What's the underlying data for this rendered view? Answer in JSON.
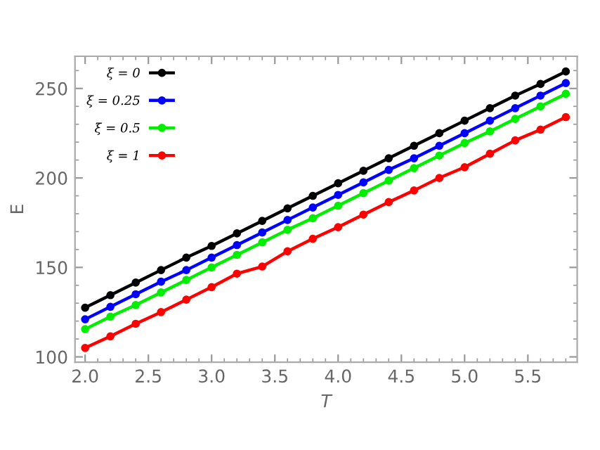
{
  "chart_data": {
    "type": "line",
    "xlabel": "T",
    "ylabel": "E",
    "x": [
      2.0,
      2.2,
      2.4,
      2.6,
      2.8,
      3.0,
      3.2,
      3.4,
      3.6,
      3.8,
      4.0,
      4.2,
      4.4,
      4.6,
      4.8,
      5.0,
      5.2,
      5.4,
      5.6,
      5.8
    ],
    "series": [
      {
        "name": "ξ = 0",
        "color": "#000000",
        "values": [
          127.5,
          134.5,
          141.5,
          148.5,
          155.5,
          162.0,
          169.0,
          176.0,
          183.0,
          190.0,
          197.0,
          204.0,
          211.0,
          218.0,
          225.0,
          232.0,
          239.0,
          246.0,
          252.5,
          259.5
        ]
      },
      {
        "name": "ξ = 0.25",
        "color": "#0000ff",
        "values": [
          121,
          128,
          135,
          142,
          148.5,
          155.5,
          162.5,
          169.5,
          176.5,
          183.5,
          190.5,
          197.5,
          204.5,
          211,
          218,
          225,
          232,
          239,
          246,
          253
        ]
      },
      {
        "name": "ξ = 0.5",
        "color": "#00ee00",
        "values": [
          115.5,
          122.5,
          129,
          136,
          143,
          150,
          157,
          164,
          171,
          177.5,
          184.5,
          191.5,
          198.5,
          205.5,
          212.5,
          219.5,
          226,
          233,
          240,
          247
        ]
      },
      {
        "name": "ξ = 1",
        "color": "#ff0000",
        "values": [
          105,
          111.5,
          118.5,
          125,
          132,
          139,
          146.5,
          150.5,
          159,
          166,
          172.5,
          179.5,
          186.5,
          193,
          200,
          206,
          213.5,
          221,
          227,
          234
        ]
      }
    ],
    "xlim": [
      1.92,
      5.89
    ],
    "ylim": [
      97,
      268
    ],
    "xticks": [
      {
        "value": 2.0,
        "label": "2.0"
      },
      {
        "value": 2.5,
        "label": "2.5"
      },
      {
        "value": 3.0,
        "label": "3.0"
      },
      {
        "value": 3.5,
        "label": "3.5"
      },
      {
        "value": 4.0,
        "label": "4.0"
      },
      {
        "value": 4.5,
        "label": "4.5"
      },
      {
        "value": 5.0,
        "label": "5.0"
      },
      {
        "value": 5.5,
        "label": "5.5"
      }
    ],
    "yticks": [
      100,
      150,
      200,
      250
    ],
    "marker": "circle",
    "line_style": "solid",
    "legend": "top left",
    "grid": false
  }
}
